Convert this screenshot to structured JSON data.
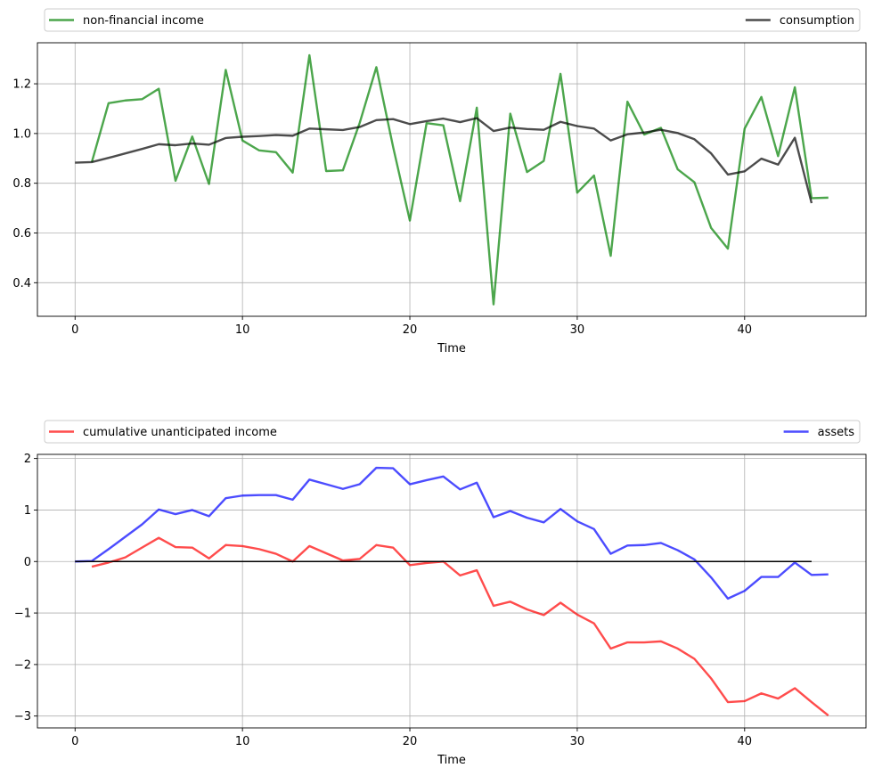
{
  "chart_data": [
    {
      "type": "line",
      "xlabel": "Time",
      "ylabel": "",
      "xlim": [
        -2.25,
        47.25
      ],
      "ylim": [
        0.265,
        1.365
      ],
      "xticks": [
        0,
        10,
        20,
        30,
        40
      ],
      "yticks": [
        0.4,
        0.6,
        0.8,
        1.0,
        1.2
      ],
      "ytick_labels": [
        "0.4",
        "0.6",
        "0.8",
        "1.0",
        "1.2"
      ],
      "grid": true,
      "legend_placement": "above, expanded across width",
      "series": [
        {
          "name": "non-financial income",
          "color": "#008000",
          "x": [
            1,
            2,
            3,
            4,
            5,
            6,
            7,
            8,
            9,
            10,
            11,
            12,
            13,
            14,
            15,
            16,
            17,
            18,
            19,
            20,
            21,
            22,
            23,
            24,
            25,
            26,
            27,
            28,
            29,
            30,
            31,
            32,
            33,
            34,
            35,
            36,
            37,
            38,
            39,
            40,
            41,
            42,
            43,
            44,
            45
          ],
          "values": [
            0.885,
            1.122,
            1.133,
            1.138,
            1.18,
            0.81,
            0.988,
            0.797,
            1.256,
            0.972,
            0.932,
            0.925,
            0.843,
            1.315,
            0.849,
            0.852,
            1.042,
            1.267,
            0.946,
            0.65,
            1.042,
            1.033,
            0.728,
            1.104,
            0.313,
            1.08,
            0.845,
            0.89,
            1.24,
            0.762,
            0.831,
            0.508,
            1.128,
            0.996,
            1.023,
            0.856,
            0.804,
            0.62,
            0.537,
            1.02,
            1.147,
            0.909,
            1.186,
            0.74,
            0.742
          ]
        },
        {
          "name": "consumption",
          "color": "#000000",
          "x": [
            0,
            1,
            2,
            3,
            4,
            5,
            6,
            7,
            8,
            9,
            10,
            11,
            12,
            13,
            14,
            15,
            16,
            17,
            18,
            19,
            20,
            21,
            22,
            23,
            24,
            25,
            26,
            27,
            28,
            29,
            30,
            31,
            32,
            33,
            34,
            35,
            36,
            37,
            38,
            39,
            40,
            41,
            42,
            43,
            44
          ],
          "values": [
            0.883,
            0.885,
            0.902,
            0.92,
            0.938,
            0.957,
            0.953,
            0.96,
            0.955,
            0.982,
            0.987,
            0.99,
            0.994,
            0.991,
            1.02,
            1.017,
            1.014,
            1.026,
            1.054,
            1.058,
            1.038,
            1.05,
            1.06,
            1.046,
            1.062,
            1.01,
            1.024,
            1.018,
            1.015,
            1.047,
            1.03,
            1.02,
            0.972,
            0.997,
            1.004,
            1.015,
            1.002,
            0.977,
            0.92,
            0.835,
            0.848,
            0.899,
            0.875,
            0.983,
            0.72
          ]
        }
      ]
    },
    {
      "type": "line",
      "xlabel": "Time",
      "ylabel": "",
      "xlim": [
        -2.25,
        47.25
      ],
      "ylim": [
        -3.23,
        2.08
      ],
      "xticks": [
        0,
        10,
        20,
        30,
        40
      ],
      "yticks": [
        -3,
        -2,
        -1,
        0,
        1,
        2
      ],
      "ytick_labels": [
        "−3",
        "−2",
        "−1",
        "0",
        "1",
        "2"
      ],
      "grid": true,
      "legend_placement": "above, expanded across width",
      "series": [
        {
          "name": "cumulative unanticipated income",
          "color": "#ff0000",
          "x": [
            1,
            2,
            3,
            4,
            5,
            6,
            7,
            8,
            9,
            10,
            11,
            12,
            13,
            14,
            15,
            16,
            17,
            18,
            19,
            20,
            21,
            22,
            23,
            24,
            25,
            26,
            27,
            28,
            29,
            30,
            31,
            32,
            33,
            34,
            35,
            36,
            37,
            38,
            39,
            40,
            41,
            42,
            43,
            44,
            45
          ],
          "values": [
            -0.1,
            -0.02,
            0.08,
            0.27,
            0.46,
            0.28,
            0.27,
            0.06,
            0.32,
            0.3,
            0.24,
            0.15,
            0.0,
            0.3,
            0.16,
            0.02,
            0.05,
            0.32,
            0.27,
            -0.07,
            -0.03,
            0.0,
            -0.27,
            -0.17,
            -0.86,
            -0.78,
            -0.93,
            -1.04,
            -0.8,
            -1.03,
            -1.2,
            -1.69,
            -1.57,
            -1.57,
            -1.55,
            -1.69,
            -1.89,
            -2.27,
            -2.73,
            -2.71,
            -2.56,
            -2.66,
            -2.46,
            -2.73,
            -2.99
          ]
        },
        {
          "name": "assets",
          "color": "#0000ff",
          "x": [
            0,
            1,
            2,
            3,
            4,
            5,
            6,
            7,
            8,
            9,
            10,
            11,
            12,
            13,
            14,
            15,
            16,
            17,
            18,
            19,
            20,
            21,
            22,
            23,
            24,
            25,
            26,
            27,
            28,
            29,
            30,
            31,
            32,
            33,
            34,
            35,
            36,
            37,
            38,
            39,
            40,
            41,
            42,
            43,
            44,
            45
          ],
          "values": [
            0.0,
            0.01,
            0.24,
            0.48,
            0.72,
            1.01,
            0.92,
            1.0,
            0.88,
            1.23,
            1.28,
            1.29,
            1.29,
            1.2,
            1.59,
            1.5,
            1.41,
            1.5,
            1.82,
            1.81,
            1.5,
            1.58,
            1.65,
            1.4,
            1.53,
            0.86,
            0.98,
            0.85,
            0.76,
            1.02,
            0.78,
            0.63,
            0.15,
            0.31,
            0.32,
            0.36,
            0.22,
            0.04,
            -0.31,
            -0.72,
            -0.57,
            -0.3,
            -0.3,
            -0.02,
            -0.26,
            -0.25
          ]
        },
        {
          "name": "",
          "color": "#000000",
          "x": [
            0,
            44
          ],
          "values": [
            0,
            0
          ]
        }
      ]
    }
  ]
}
